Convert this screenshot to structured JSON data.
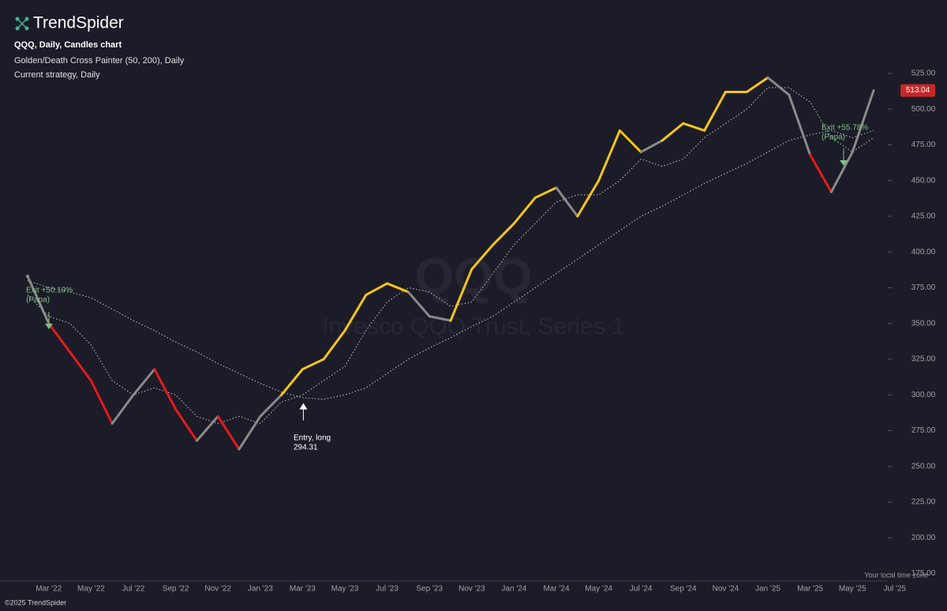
{
  "header": {
    "brand": "TrendSpider",
    "symbol_line": "QQQ, Daily, Candles chart",
    "indicator_line": "Golden/Death Cross Painter (50, 200), Daily",
    "strategy_line": "Current strategy, Daily"
  },
  "watermark": {
    "symbol": "QQQ",
    "name": "Invesco QQQ Trust, Series 1"
  },
  "footer": {
    "copyright": "©2025 TrendSpider",
    "timezone": "Your local time zone"
  },
  "chart_data": {
    "type": "line",
    "categories": [
      null,
      "Mar '22",
      null,
      "May '22",
      null,
      "Jul '22",
      null,
      "Sep '22",
      null,
      "Nov '22",
      null,
      "Jan '23",
      null,
      "Mar '23",
      null,
      "May '23",
      null,
      "Jul '23",
      null,
      "Sep '23",
      null,
      "Nov '23",
      null,
      "Jan '24",
      null,
      "Mar '24",
      null,
      "May '24",
      null,
      "Jul '24",
      null,
      "Sep '24",
      null,
      "Nov '24",
      null,
      "Jan '25",
      null,
      "Mar '25",
      null,
      "May '25",
      null,
      "Jul '25"
    ],
    "values": [
      383,
      350,
      330,
      310,
      280,
      300,
      318,
      290,
      268,
      285,
      262,
      285,
      300,
      318,
      325,
      345,
      370,
      378,
      372,
      355,
      352,
      388,
      405,
      420,
      438,
      445,
      425,
      450,
      485,
      470,
      478,
      490,
      485,
      512,
      512,
      522,
      510,
      468,
      442,
      470,
      513,
      null
    ],
    "colors": [
      "#8a8a8a",
      "#8a8a8a",
      "#e31b1b",
      "#e31b1b",
      "#e31b1b",
      "#8a8a8a",
      "#8a8a8a",
      "#e31b1b",
      "#e31b1b",
      "#8a8a8a",
      "#e31b1b",
      "#8a8a8a",
      "#8a8a8a",
      "#f5c518",
      "#f5c518",
      "#f5c518",
      "#f5c518",
      "#f5c518",
      "#f5c518",
      "#8a8a8a",
      "#8a8a8a",
      "#f5c518",
      "#f5c518",
      "#f5c518",
      "#f5c518",
      "#f5c518",
      "#8a8a8a",
      "#f5c518",
      "#f5c518",
      "#f5c518",
      "#8a8a8a",
      "#f5c518",
      "#f5c518",
      "#f5c518",
      "#f5c518",
      "#f5c518",
      "#8a8a8a",
      "#8a8a8a",
      "#e31b1b",
      "#8a8a8a",
      "#8a8a8a",
      null
    ],
    "ma_fast": [
      370,
      355,
      350,
      335,
      310,
      300,
      305,
      300,
      285,
      280,
      285,
      280,
      295,
      300,
      310,
      320,
      345,
      365,
      375,
      372,
      362,
      365,
      385,
      405,
      420,
      435,
      440,
      440,
      450,
      465,
      460,
      465,
      480,
      490,
      500,
      515,
      515,
      505,
      480,
      470,
      480,
      null
    ],
    "ma_slow": [
      380,
      375,
      372,
      368,
      360,
      352,
      345,
      337,
      330,
      322,
      315,
      308,
      302,
      298,
      297,
      300,
      305,
      315,
      325,
      333,
      340,
      348,
      355,
      365,
      375,
      385,
      395,
      405,
      415,
      425,
      432,
      440,
      448,
      455,
      462,
      470,
      478,
      482,
      485,
      480,
      485,
      null
    ],
    "ma_color": "#c8c8c8",
    "ylim": [
      172,
      540
    ],
    "yticks": [
      {
        "value": 175,
        "label": "175.00"
      },
      {
        "value": 200,
        "label": "200.00"
      },
      {
        "value": 225,
        "label": "225.00"
      },
      {
        "value": 250,
        "label": "250.00"
      },
      {
        "value": 275,
        "label": "275.00"
      },
      {
        "value": 300,
        "label": "300.00"
      },
      {
        "value": 325,
        "label": "325.00"
      },
      {
        "value": 350,
        "label": "350.00"
      },
      {
        "value": 375,
        "label": "375.00"
      },
      {
        "value": 400,
        "label": "400.00"
      },
      {
        "value": 425,
        "label": "425.00"
      },
      {
        "value": 450,
        "label": "450.00"
      },
      {
        "value": 475,
        "label": "475.00"
      },
      {
        "value": 500,
        "label": "500.00"
      },
      {
        "value": 525,
        "label": "525.00"
      }
    ],
    "last_price": 513.04,
    "annotations": [
      {
        "text": "Exit +50.19%",
        "note": "(Papa)",
        "color": "#7bc47f"
      },
      {
        "text": "Entry, long",
        "price": 294.31,
        "color": "#ffffff"
      },
      {
        "text": "Exit +55.78%",
        "note": "(Papa)",
        "color": "#7bc47f"
      }
    ]
  }
}
